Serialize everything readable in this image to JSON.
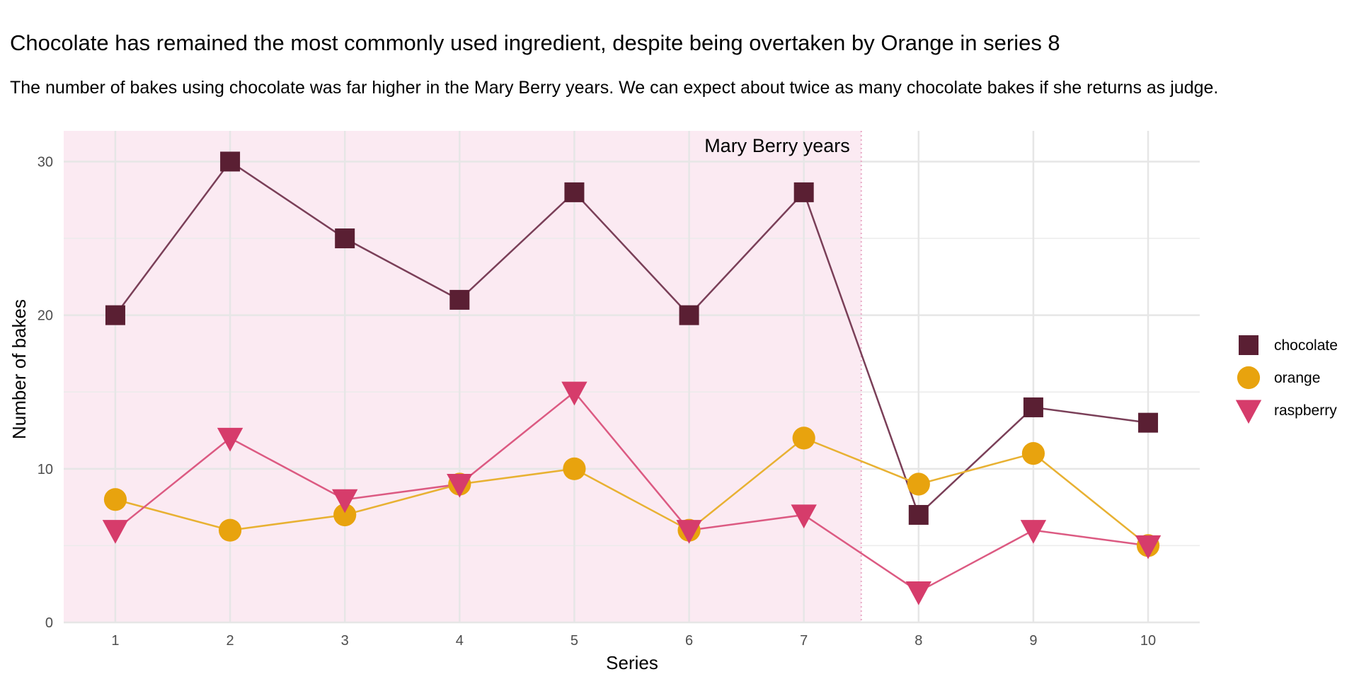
{
  "title": "Chocolate has remained the most commonly used ingredient, despite being overtaken by Orange in series 8",
  "subtitle": "The number of bakes using chocolate was far higher in the Mary Berry years. We can expect about twice as many chocolate bakes if she returns as judge.",
  "chart_data": {
    "type": "line",
    "xlabel": "Series",
    "ylabel": "Number of bakes",
    "x": [
      1,
      2,
      3,
      4,
      5,
      6,
      7,
      8,
      9,
      10
    ],
    "xlim": [
      0.55,
      10.45
    ],
    "ylim": [
      0,
      32
    ],
    "yticks": [
      0,
      10,
      20,
      30
    ],
    "grid": true,
    "legend_position": "right",
    "shaded_region": {
      "label": "Mary Berry years",
      "x_start": 0.55,
      "x_end": 7.5,
      "color": "#fbeaf2",
      "line_color": "#e9a9c6"
    },
    "series": [
      {
        "name": "chocolate",
        "marker": "square",
        "color": "#5a1f33",
        "line_color": "#7a3f58",
        "values": [
          20,
          30,
          25,
          21,
          28,
          20,
          28,
          7,
          14,
          13
        ]
      },
      {
        "name": "orange",
        "marker": "circle",
        "color": "#e8a30e",
        "line_color": "#e8b132",
        "values": [
          8,
          6,
          7,
          9,
          10,
          6,
          12,
          9,
          11,
          5
        ]
      },
      {
        "name": "raspberry",
        "marker": "triangle-down",
        "color": "#d63c6b",
        "line_color": "#dc5a82",
        "values": [
          6,
          12,
          8,
          9,
          15,
          6,
          7,
          2,
          6,
          5
        ]
      }
    ]
  }
}
